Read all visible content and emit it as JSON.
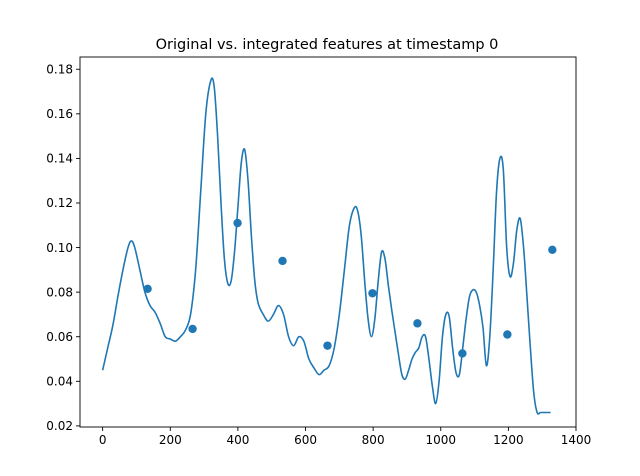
{
  "chart_data": {
    "type": "line",
    "title": "Original vs. integrated features at timestamp 0",
    "xlabel": "",
    "ylabel": "",
    "xlim": [
      -67,
      1400
    ],
    "ylim": [
      0.0195,
      0.1855
    ],
    "xticks": [
      0,
      200,
      400,
      600,
      800,
      1000,
      1200,
      1400
    ],
    "yticks": [
      0.02,
      0.04,
      0.06,
      0.08,
      0.1,
      0.12,
      0.14,
      0.16,
      0.18
    ],
    "xtick_labels": [
      "0",
      "200",
      "400",
      "600",
      "800",
      "1000",
      "1200",
      "1400"
    ],
    "ytick_labels": [
      "0.02",
      "0.04",
      "0.06",
      "0.08",
      "0.10",
      "0.12",
      "0.14",
      "0.16",
      "0.18"
    ],
    "grid": false,
    "legend": null,
    "colors": {
      "series": "#1f77b4",
      "frame": "#000000",
      "background": "#ffffff"
    },
    "series": [
      {
        "kind": "line",
        "x": [
          0,
          15,
          30,
          45,
          60,
          75,
          85,
          95,
          110,
          125,
          140,
          155,
          170,
          185,
          200,
          215,
          230,
          245,
          260,
          275,
          290,
          305,
          320,
          330,
          340,
          350,
          360,
          370,
          380,
          390,
          400,
          410,
          420,
          430,
          440,
          450,
          460,
          475,
          490,
          505,
          520,
          535,
          550,
          565,
          580,
          595,
          610,
          625,
          640,
          655,
          670,
          685,
          700,
          715,
          730,
          745,
          755,
          765,
          775,
          785,
          795,
          805,
          815,
          825,
          835,
          845,
          855,
          865,
          875,
          885,
          895,
          905,
          915,
          925,
          935,
          945,
          955,
          965,
          975,
          985,
          995,
          1005,
          1015,
          1025,
          1035,
          1045,
          1055,
          1065,
          1075,
          1085,
          1095,
          1105,
          1115,
          1125,
          1135,
          1145,
          1155,
          1165,
          1175,
          1185,
          1195,
          1205,
          1215,
          1225,
          1235,
          1245,
          1255,
          1265,
          1275,
          1285,
          1295,
          1305,
          1315,
          1325
        ],
        "y": [
          0.045,
          0.055,
          0.065,
          0.078,
          0.09,
          0.1,
          0.103,
          0.1,
          0.09,
          0.08,
          0.074,
          0.071,
          0.066,
          0.06,
          0.059,
          0.058,
          0.06,
          0.063,
          0.07,
          0.09,
          0.125,
          0.16,
          0.175,
          0.172,
          0.15,
          0.12,
          0.095,
          0.084,
          0.085,
          0.098,
          0.118,
          0.138,
          0.144,
          0.13,
          0.105,
          0.085,
          0.075,
          0.07,
          0.067,
          0.07,
          0.074,
          0.07,
          0.06,
          0.056,
          0.06,
          0.058,
          0.05,
          0.046,
          0.043,
          0.045,
          0.047,
          0.055,
          0.07,
          0.09,
          0.11,
          0.118,
          0.116,
          0.105,
          0.085,
          0.068,
          0.06,
          0.068,
          0.085,
          0.098,
          0.095,
          0.083,
          0.072,
          0.062,
          0.052,
          0.043,
          0.041,
          0.045,
          0.05,
          0.053,
          0.055,
          0.06,
          0.06,
          0.05,
          0.038,
          0.03,
          0.04,
          0.06,
          0.07,
          0.069,
          0.055,
          0.044,
          0.043,
          0.055,
          0.068,
          0.078,
          0.081,
          0.08,
          0.074,
          0.064,
          0.047,
          0.06,
          0.09,
          0.125,
          0.14,
          0.135,
          0.1,
          0.087,
          0.093,
          0.108,
          0.113,
          0.1,
          0.078,
          0.055,
          0.035,
          0.026,
          0.026,
          0.026,
          0.026,
          0.026
        ]
      },
      {
        "kind": "scatter",
        "x": [
          133,
          266,
          399,
          532,
          665,
          798,
          931,
          1064,
          1197,
          1330
        ],
        "y": [
          0.0815,
          0.0635,
          0.111,
          0.094,
          0.056,
          0.0795,
          0.066,
          0.0525,
          0.061,
          0.099
        ]
      }
    ]
  }
}
